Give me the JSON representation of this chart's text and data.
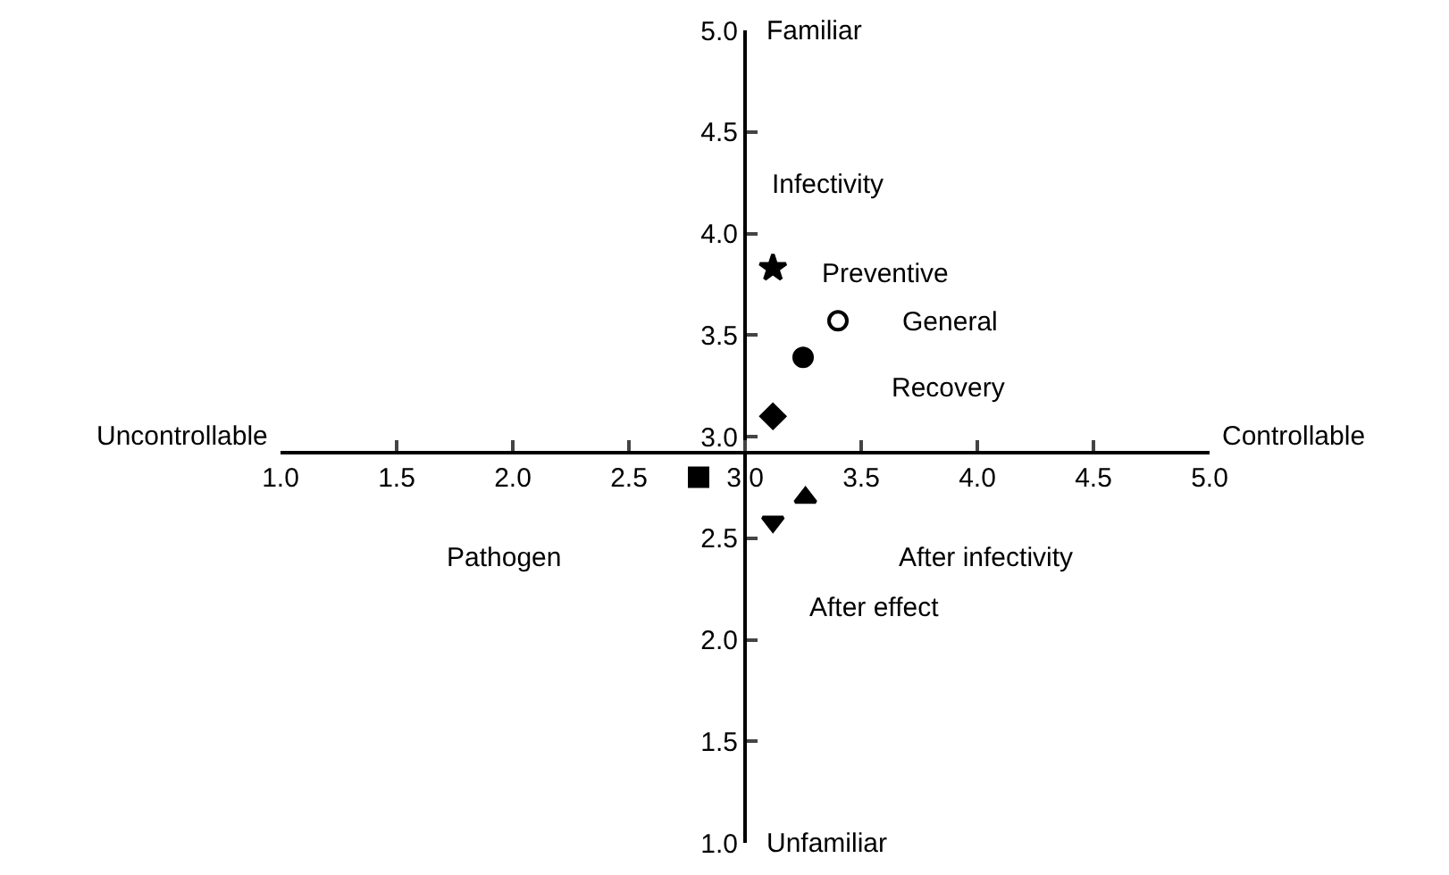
{
  "chart_data": {
    "type": "scatter",
    "xlim": [
      1,
      5
    ],
    "ylim": [
      1,
      5
    ],
    "xticks": [
      {
        "value": 1,
        "label": "1.0"
      },
      {
        "value": 1.5,
        "label": "1.5"
      },
      {
        "value": 2,
        "label": "2.0"
      },
      {
        "value": 2.5,
        "label": "2.5"
      },
      {
        "value": 3,
        "label": "3.0"
      },
      {
        "value": 3.5,
        "label": "3.5"
      },
      {
        "value": 4,
        "label": "4.0"
      },
      {
        "value": 4.5,
        "label": "4.5"
      },
      {
        "value": 5,
        "label": "5.0"
      }
    ],
    "yticks": [
      {
        "value": 1,
        "label": "1.0"
      },
      {
        "value": 1.5,
        "label": "1.5"
      },
      {
        "value": 2,
        "label": "2.0"
      },
      {
        "value": 2.5,
        "label": "2.5"
      },
      {
        "value": 3,
        "label": "3.0"
      },
      {
        "value": 3.5,
        "label": "3.5"
      },
      {
        "value": 4,
        "label": "4.0"
      },
      {
        "value": 4.5,
        "label": "4.5"
      },
      {
        "value": 5,
        "label": "5.0"
      }
    ],
    "series": [
      {
        "color": "#000000",
        "marker": "star",
        "x": [
          3.12
        ],
        "values": [
          3.83
        ]
      },
      {
        "color": "#000000",
        "marker": "circle-open",
        "x": [
          3.4
        ],
        "values": [
          3.57
        ]
      },
      {
        "color": "#000000",
        "marker": "circle",
        "x": [
          3.25
        ],
        "values": [
          3.39
        ]
      },
      {
        "color": "#000000",
        "marker": "diamond",
        "x": [
          3.12
        ],
        "values": [
          3.1
        ]
      },
      {
        "color": "#000000",
        "marker": "square",
        "x": [
          2.8
        ],
        "values": [
          2.8
        ]
      },
      {
        "color": "#000000",
        "marker": "triangle",
        "x": [
          3.26
        ],
        "values": [
          2.7
        ]
      },
      {
        "color": "#000000",
        "marker": "triangle-down",
        "x": [
          3.12
        ],
        "values": [
          2.58
        ]
      }
    ],
    "annotations": [
      "Infectivity",
      "Preventive",
      "General",
      "Recovery",
      "Pathogen",
      "After infectivity",
      "After effect",
      "Familiar",
      "Unfamiliar",
      "Uncontrollable",
      "Controllable"
    ]
  }
}
